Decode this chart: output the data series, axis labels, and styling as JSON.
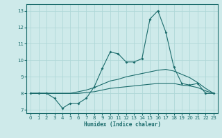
{
  "xlabel": "Humidex (Indice chaleur)",
  "background_color": "#ceeaea",
  "line_color": "#1a6b6b",
  "grid_color": "#afd8d8",
  "xlim": [
    -0.5,
    23.5
  ],
  "ylim": [
    6.8,
    13.4
  ],
  "yticks": [
    7,
    8,
    9,
    10,
    11,
    12,
    13
  ],
  "xticks": [
    0,
    1,
    2,
    3,
    4,
    5,
    6,
    7,
    8,
    9,
    10,
    11,
    12,
    13,
    14,
    15,
    16,
    17,
    18,
    19,
    20,
    21,
    22,
    23
  ],
  "hours": [
    0,
    1,
    2,
    3,
    4,
    5,
    6,
    7,
    8,
    9,
    10,
    11,
    12,
    13,
    14,
    15,
    16,
    17,
    18,
    19,
    20,
    21,
    22,
    23
  ],
  "line_max": [
    8.0,
    8.0,
    8.0,
    7.7,
    7.1,
    7.4,
    7.4,
    7.7,
    8.4,
    9.5,
    10.5,
    10.4,
    9.9,
    9.9,
    10.1,
    12.5,
    13.0,
    11.7,
    9.6,
    8.6,
    8.5,
    8.6,
    8.0,
    8.0
  ],
  "line_mid": [
    8.0,
    8.0,
    8.0,
    8.0,
    8.0,
    8.0,
    8.1,
    8.2,
    8.35,
    8.55,
    8.75,
    8.85,
    9.0,
    9.1,
    9.2,
    9.3,
    9.4,
    9.45,
    9.35,
    9.15,
    8.95,
    8.65,
    8.3,
    8.0
  ],
  "line_low": [
    8.0,
    8.0,
    8.0,
    8.0,
    8.0,
    8.0,
    8.0,
    8.05,
    8.1,
    8.2,
    8.3,
    8.35,
    8.4,
    8.45,
    8.5,
    8.55,
    8.6,
    8.6,
    8.6,
    8.5,
    8.45,
    8.35,
    8.15,
    8.0
  ]
}
